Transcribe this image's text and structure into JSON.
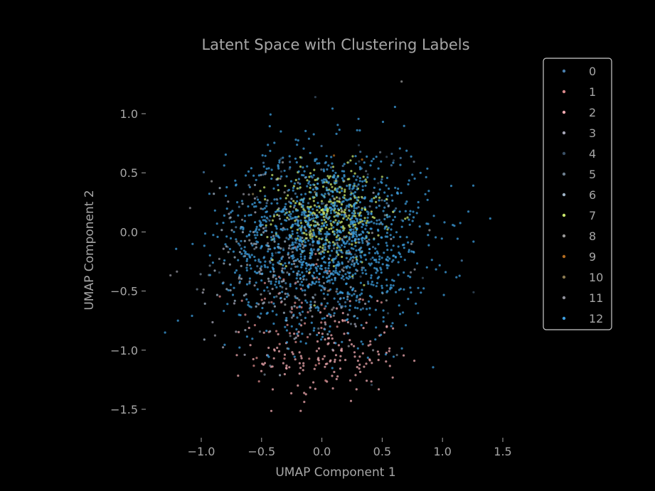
{
  "chart_data": {
    "type": "scatter",
    "title": "Latent Space with Clustering Labels",
    "xlabel": "UMAP Component 1",
    "ylabel": "UMAP Component 2",
    "xlim": [
      -1.35,
      1.62
    ],
    "ylim": [
      -1.75,
      1.35
    ],
    "xticks": [
      -1.0,
      -0.5,
      0.0,
      0.5,
      1.0,
      1.5
    ],
    "xtick_labels": [
      "−1.0",
      "−0.5",
      "0.0",
      "0.5",
      "1.0",
      "1.5"
    ],
    "yticks": [
      1.0,
      0.5,
      0.0,
      -0.5,
      -1.0,
      -1.5
    ],
    "ytick_labels": [
      "1.0",
      "0.5",
      "0.0",
      "−0.5",
      "−1.0",
      "−1.5"
    ],
    "grid": false,
    "legend_position": "upper-right-outside",
    "series": [
      {
        "name": "0",
        "color": "#4a7fae",
        "center": [
          0.05,
          0.05
        ],
        "spread": [
          0.4,
          0.4
        ],
        "count": 90
      },
      {
        "name": "1",
        "color": "#d9888a",
        "center": [
          -0.2,
          -0.65
        ],
        "spread": [
          0.3,
          0.35
        ],
        "count": 60
      },
      {
        "name": "2",
        "color": "#f0a9b0",
        "center": [
          0.05,
          -1.05
        ],
        "spread": [
          0.3,
          0.2
        ],
        "count": 160
      },
      {
        "name": "3",
        "color": "#a7a7b8",
        "center": [
          -0.25,
          -0.35
        ],
        "spread": [
          0.35,
          0.35
        ],
        "count": 60
      },
      {
        "name": "4",
        "color": "#3a5066",
        "center": [
          0.0,
          0.0
        ],
        "spread": [
          0.45,
          0.45
        ],
        "count": 40
      },
      {
        "name": "5",
        "color": "#6e7f8f",
        "center": [
          -0.1,
          -0.2
        ],
        "spread": [
          0.4,
          0.4
        ],
        "count": 50
      },
      {
        "name": "6",
        "color": "#9fb3c6",
        "center": [
          -0.35,
          -0.25
        ],
        "spread": [
          0.3,
          0.35
        ],
        "count": 110
      },
      {
        "name": "7",
        "color": "#c8e66b",
        "center": [
          0.05,
          0.15
        ],
        "spread": [
          0.22,
          0.2
        ],
        "count": 320
      },
      {
        "name": "8",
        "color": "#9a9a9a",
        "center": [
          0.0,
          -0.1
        ],
        "spread": [
          0.4,
          0.4
        ],
        "count": 40
      },
      {
        "name": "9",
        "color": "#b36b1f",
        "center": [
          0.1,
          0.2
        ],
        "spread": [
          0.3,
          0.3
        ],
        "count": 4
      },
      {
        "name": "10",
        "color": "#8a7a50",
        "center": [
          0.0,
          0.1
        ],
        "spread": [
          0.35,
          0.35
        ],
        "count": 6
      },
      {
        "name": "11",
        "color": "#8f8f9a",
        "center": [
          -0.15,
          -0.25
        ],
        "spread": [
          0.4,
          0.4
        ],
        "count": 60
      },
      {
        "name": "12",
        "color": "#3c9ddd",
        "center": [
          0.05,
          -0.05
        ],
        "spread": [
          0.42,
          0.38
        ],
        "count": 1300
      }
    ]
  }
}
